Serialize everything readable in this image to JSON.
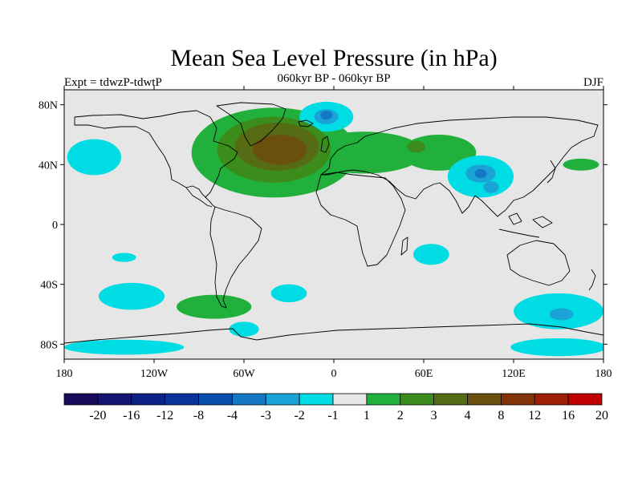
{
  "title": "Mean Sea Level Pressure (in hPa)",
  "left_label": "Expt = tdwzP-tdwtP",
  "center_label": "060kyr BP - 060kyr BP",
  "right_label": "DJF",
  "map": {
    "projection": "cylindrical-equidistant",
    "lon_range": [
      -180,
      180
    ],
    "lat_range": [
      -90,
      90
    ],
    "ocean_color": "#e6e6e6",
    "coast_color": "#000000",
    "y_ticks": [
      {
        "lat": 80,
        "label": "80N"
      },
      {
        "lat": 40,
        "label": "40N"
      },
      {
        "lat": 0,
        "label": "0"
      },
      {
        "lat": -40,
        "label": "40S"
      },
      {
        "lat": -80,
        "label": "80S"
      }
    ],
    "x_ticks": [
      {
        "lon": -180,
        "label": "180"
      },
      {
        "lon": -120,
        "label": "120W"
      },
      {
        "lon": -60,
        "label": "60W"
      },
      {
        "lon": 0,
        "label": "0"
      },
      {
        "lon": 60,
        "label": "60E"
      },
      {
        "lon": 120,
        "label": "120E"
      },
      {
        "lon": 180,
        "label": "180"
      }
    ],
    "anomalies": [
      {
        "lon": -40,
        "lat": 48,
        "rlon": 55,
        "rlat": 30,
        "level": 1
      },
      {
        "lon": 20,
        "lat": 48,
        "rlon": 40,
        "rlat": 14,
        "level": 1
      },
      {
        "lon": 70,
        "lat": 48,
        "rlon": 25,
        "rlat": 12,
        "level": 1
      },
      {
        "lon": -80,
        "lat": -55,
        "rlon": 25,
        "rlat": 8,
        "level": 1
      },
      {
        "lon": 165,
        "lat": 40,
        "rlon": 12,
        "rlat": 4,
        "level": 1
      },
      {
        "lon": -40,
        "lat": 50,
        "rlon": 38,
        "rlat": 22,
        "level": 2
      },
      {
        "lon": 55,
        "lat": 52,
        "rlon": 6,
        "rlat": 4,
        "level": 2
      },
      {
        "lon": -38,
        "lat": 52,
        "rlon": 28,
        "rlat": 16,
        "level": 3
      },
      {
        "lon": -36,
        "lat": 50,
        "rlon": 18,
        "rlat": 10,
        "level": 4
      },
      {
        "lon": -160,
        "lat": 45,
        "rlon": 18,
        "rlat": 12,
        "level": -1
      },
      {
        "lon": -5,
        "lat": 72,
        "rlon": 18,
        "rlat": 10,
        "level": -1
      },
      {
        "lon": 98,
        "lat": 32,
        "rlon": 22,
        "rlat": 14,
        "level": -1
      },
      {
        "lon": 65,
        "lat": -20,
        "rlon": 12,
        "rlat": 7,
        "level": -1
      },
      {
        "lon": -135,
        "lat": -48,
        "rlon": 22,
        "rlat": 9,
        "level": -1
      },
      {
        "lon": -140,
        "lat": -22,
        "rlon": 8,
        "rlat": 3,
        "level": -1
      },
      {
        "lon": -30,
        "lat": -46,
        "rlon": 12,
        "rlat": 6,
        "level": -1
      },
      {
        "lon": 150,
        "lat": -58,
        "rlon": 30,
        "rlat": 12,
        "level": -1
      },
      {
        "lon": -60,
        "lat": -70,
        "rlon": 10,
        "rlat": 5,
        "level": -1
      },
      {
        "lon": 150,
        "lat": -82,
        "rlon": 32,
        "rlat": 6,
        "level": -1
      },
      {
        "lon": -140,
        "lat": -82,
        "rlon": 40,
        "rlat": 5,
        "level": -1
      },
      {
        "lon": -5,
        "lat": 72,
        "rlon": 8,
        "rlat": 5,
        "level": -2
      },
      {
        "lon": 98,
        "lat": 34,
        "rlon": 10,
        "rlat": 6,
        "level": -2
      },
      {
        "lon": 105,
        "lat": 25,
        "rlon": 5,
        "rlat": 4,
        "level": -2
      },
      {
        "lon": 152,
        "lat": -60,
        "rlon": 8,
        "rlat": 4,
        "level": -2
      },
      {
        "lon": -5,
        "lat": 73,
        "rlon": 4,
        "rlat": 3,
        "level": -3
      },
      {
        "lon": 98,
        "lat": 34,
        "rlon": 4,
        "rlat": 3,
        "level": -3
      }
    ]
  },
  "colorbar": {
    "colors": [
      "#1a0a5c",
      "#131570",
      "#0d2287",
      "#0a3399",
      "#0a4fab",
      "#1478c4",
      "#19a3d6",
      "#00dce3",
      "#e6e6e6",
      "#21b03c",
      "#3b8c1a",
      "#556b14",
      "#6b4f0e",
      "#82330a",
      "#9e1f06",
      "#c00000"
    ],
    "labels": [
      "-20",
      "-16",
      "-12",
      "-8",
      "-4",
      "-3",
      "-2",
      "-1",
      "1",
      "2",
      "3",
      "4",
      "8",
      "12",
      "16",
      "20"
    ],
    "neg_levels": [
      "#00dce3",
      "#19a3d6",
      "#1478c4"
    ],
    "pos_levels": [
      "#21b03c",
      "#3b8c1a",
      "#556b14",
      "#6b4f0e"
    ]
  }
}
